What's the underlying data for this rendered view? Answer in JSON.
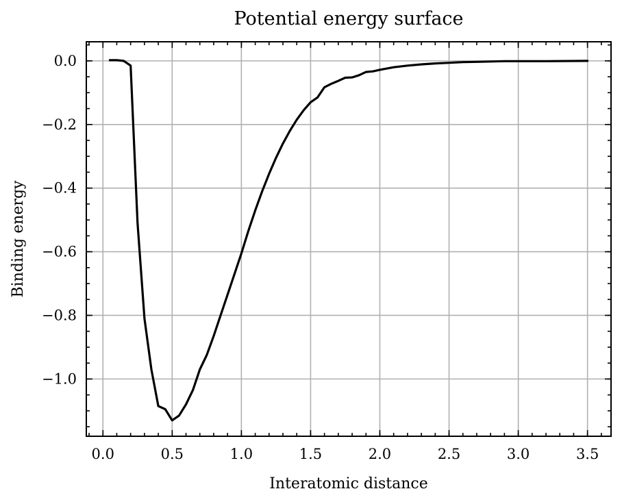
{
  "chart_data": {
    "type": "line",
    "title": "Potential energy surface",
    "xlabel": "Interatomic distance",
    "ylabel": "Binding energy",
    "xlim": [
      -0.12,
      3.67
    ],
    "ylim": [
      -1.18,
      0.06
    ],
    "xticks": [
      0.0,
      0.5,
      1.0,
      1.5,
      2.0,
      2.5,
      3.0,
      3.5
    ],
    "xtick_labels": [
      "0.0",
      "0.5",
      "1.0",
      "1.5",
      "2.0",
      "2.5",
      "3.0",
      "3.5"
    ],
    "yticks": [
      0.0,
      -0.2,
      -0.4,
      -0.6,
      -0.8,
      -1.0
    ],
    "ytick_labels": [
      "0.0",
      "−0.2",
      "−0.4",
      "−0.6",
      "−0.8",
      "−1.0"
    ],
    "xminor": 0.1,
    "yminor": 0.05,
    "grid": true,
    "series": [
      {
        "color": "#000000",
        "x": [
          0.05,
          0.1,
          0.15,
          0.2,
          0.25,
          0.3,
          0.35,
          0.4,
          0.45,
          0.5,
          0.55,
          0.6,
          0.65,
          0.7,
          0.75,
          0.8,
          0.85,
          0.9,
          0.95,
          1.0,
          1.05,
          1.1,
          1.15,
          1.2,
          1.25,
          1.3,
          1.35,
          1.4,
          1.45,
          1.5,
          1.55,
          1.6,
          1.65,
          1.7,
          1.75,
          1.8,
          1.85,
          1.9,
          1.95,
          2.0,
          2.1,
          2.2,
          2.3,
          2.4,
          2.5,
          2.6,
          2.7,
          2.8,
          2.9,
          3.0,
          3.2,
          3.5
        ],
        "y": [
          0.002,
          0.002,
          0.0,
          -0.015,
          -0.51,
          -0.81,
          -0.97,
          -1.085,
          -1.095,
          -1.13,
          -1.115,
          -1.08,
          -1.035,
          -0.97,
          -0.925,
          -0.865,
          -0.8,
          -0.735,
          -0.67,
          -0.605,
          -0.535,
          -0.47,
          -0.41,
          -0.355,
          -0.305,
          -0.26,
          -0.22,
          -0.185,
          -0.155,
          -0.13,
          -0.115,
          -0.083,
          -0.072,
          -0.063,
          -0.053,
          -0.052,
          -0.045,
          -0.035,
          -0.033,
          -0.028,
          -0.02,
          -0.015,
          -0.011,
          -0.008,
          -0.006,
          -0.004,
          -0.003,
          -0.002,
          -0.001,
          -0.001,
          -0.001,
          0.0
        ]
      }
    ]
  }
}
